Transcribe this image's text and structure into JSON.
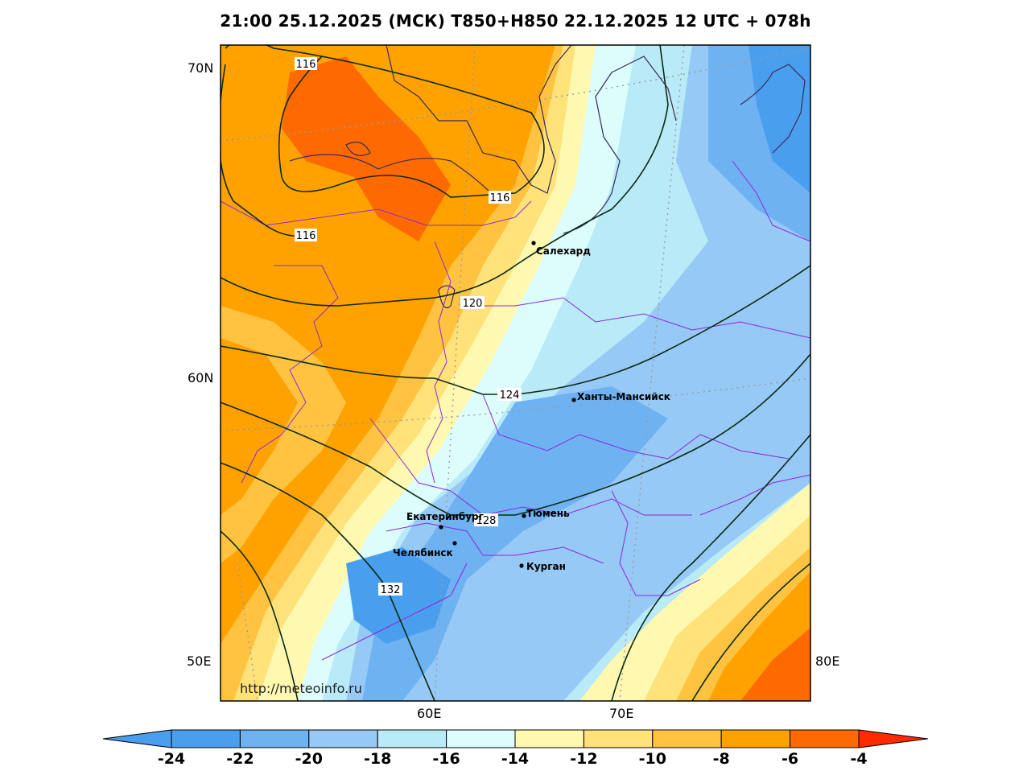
{
  "title": "21:00 25.12.2025 (МСК) T850+H850 22.12.2025 12 UTC + 078h",
  "axes": {
    "lat_labels": [
      "70N",
      "60N",
      "50E"
    ],
    "lon_labels": [
      "60E",
      "70E",
      "80E"
    ]
  },
  "watermark": "http://meteoinfo.ru",
  "cities": [
    {
      "name": "Салехард"
    },
    {
      "name": "Ханты-Мансийск"
    },
    {
      "name": "Екатеринбург"
    },
    {
      "name": "Тюмень"
    },
    {
      "name": "Челябинск"
    },
    {
      "name": "Курган"
    }
  ],
  "contour_labels": [
    "116",
    "116",
    "116",
    "120",
    "124",
    "128",
    "132"
  ],
  "colorbar": {
    "ticks": [
      "-24",
      "-22",
      "-20",
      "-18",
      "-16",
      "-14",
      "-12",
      "-10",
      "-8",
      "-6",
      "-4"
    ],
    "colors": [
      "#4a9eee",
      "#6fb2f2",
      "#96c9f5",
      "#b8eaf7",
      "#dcfdfc",
      "#fff8b0",
      "#ffe27a",
      "#ffc341",
      "#ffa200",
      "#ff6a00",
      "#ff2a00"
    ]
  }
}
